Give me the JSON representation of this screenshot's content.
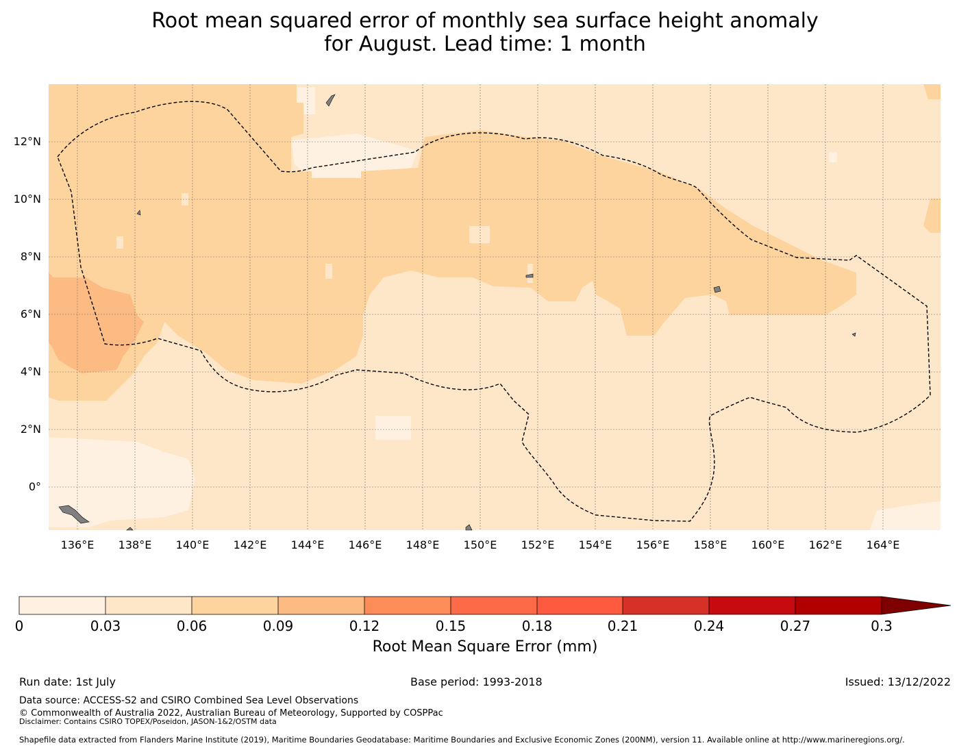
{
  "title_line1": "Root mean squared error of monthly sea surface height anomaly",
  "title_line2": "for August. Lead time: 1 month",
  "map": {
    "lon_ticks": [
      "136°E",
      "138°E",
      "140°E",
      "142°E",
      "144°E",
      "146°E",
      "148°E",
      "150°E",
      "152°E",
      "154°E",
      "156°E",
      "158°E",
      "160°E",
      "162°E",
      "164°E"
    ],
    "lat_ticks": [
      "12°N",
      "10°N",
      "8°N",
      "6°N",
      "4°N",
      "2°N",
      "0°"
    ],
    "lon_range": [
      135,
      166
    ],
    "lat_range": [
      -1.5,
      14
    ],
    "eez_boundary": "dashed",
    "land_color": "#808080"
  },
  "colorbar": {
    "ticks": [
      "0",
      "0.03",
      "0.06",
      "0.09",
      "0.12",
      "0.15",
      "0.18",
      "0.21",
      "0.24",
      "0.27",
      "0.3"
    ],
    "colors": [
      "#fff1e1",
      "#fee6c9",
      "#fdd49e",
      "#fdbb84",
      "#fc8d59",
      "#fc6a47",
      "#fe5a40",
      "#f04b36",
      "#d73027",
      "#c60a10",
      "#b00000",
      "#7f0000"
    ],
    "extend": "max",
    "label": "Root Mean Square Error (mm)"
  },
  "footer": {
    "run_date": "Run date: 1st July",
    "base_period": "Base period: 1993-2018",
    "issued": "Issued: 13/12/2022",
    "data_source": "Data source: ACCESS-S2 and CSIRO Combined Sea Level Observations",
    "copyright": "© Commonwealth of Australia 2022, Australian Bureau of Meteorology, Supported by COSPPac",
    "disclaimer": "Disclaimer: Contains CSIRO TOPEX/Poseidon, JASON-1&2/OSTM data",
    "shapefile": "Shapefile data extracted from Flanders Marine Institute (2019), Maritime Boundaries Geodatabase: Maritime Boundaries and Exclusive Economic Zones (200NM), version 11. Available online at http://www.marineregions.org/."
  }
}
